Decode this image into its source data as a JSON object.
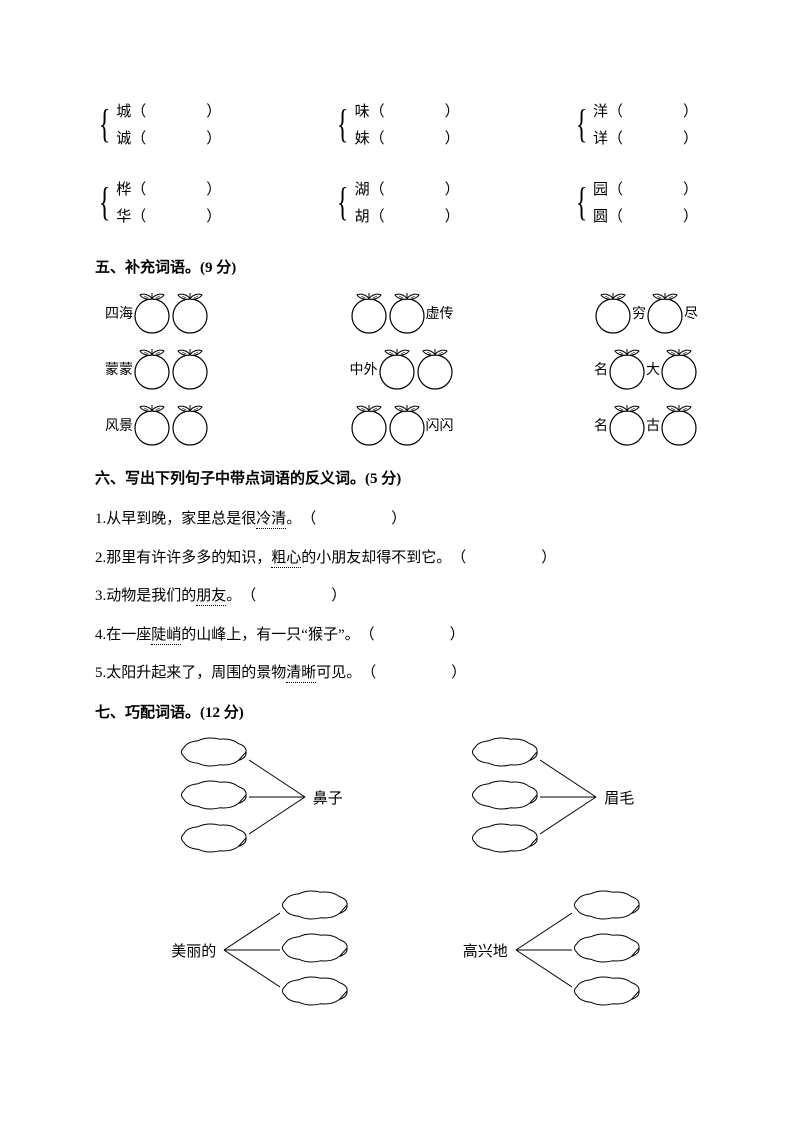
{
  "brackets": {
    "row1": {
      "g1": {
        "c1": "城",
        "c2": "诚"
      },
      "g2": {
        "c1": "味",
        "c2": "妹"
      },
      "g3": {
        "c1": "洋",
        "c2": "详"
      }
    },
    "row2": {
      "g1": {
        "c1": "桦",
        "c2": "华"
      },
      "g2": {
        "c1": "湖",
        "c2": "胡"
      },
      "g3": {
        "c1": "园",
        "c2": "圆"
      }
    }
  },
  "section5": {
    "heading": "五、补充词语。(9 分)",
    "rows": [
      {
        "a_pre": "四海",
        "a_post": "",
        "b_pre": "",
        "b_post": "虚传",
        "c_pre": "",
        "c_mid": "穷",
        "c_post": "尽"
      },
      {
        "a_pre": "蒙蒙",
        "a_post": "",
        "b_pre": "中外",
        "b_post": "",
        "c_pre": "名",
        "c_mid": "大",
        "c_post": ""
      },
      {
        "a_pre": "风景",
        "a_post": "",
        "b_pre": "",
        "b_post": "闪闪",
        "c_pre": "名",
        "c_mid": "古",
        "c_post": ""
      }
    ]
  },
  "section6": {
    "heading": "六、写出下列句子中带点词语的反义词。(5 分)",
    "s1_a": "1.从早到晚，家里总是很",
    "s1_d": "冷清",
    "s1_b": "。　（　　　　　）",
    "s2_a": "2.那里有许许多多的知识，",
    "s2_d": "粗心",
    "s2_b": "的小朋友却得不到它。　（　　　　　）",
    "s3_a": "3.动物是我们的",
    "s3_d": "朋友",
    "s3_b": "。　（　　　　　）",
    "s4_a": "4.在一座陡峭的山峰上，有一只\"猴子\"。　（　　　　　）",
    "s4_d": "陡峭",
    "s5_a": "5.太阳升起来了，周围的景物",
    "s5_d": "清晰",
    "s5_b": "可见。　（　　　　　）"
  },
  "section7": {
    "heading": "七、巧配词语。(12 分)",
    "g1": "鼻子",
    "g2": "眉毛",
    "g3": "美丽的",
    "g4": "高兴地"
  },
  "style": {
    "stroke": "#000000",
    "fill": "#ffffff",
    "tangerine_size": 38,
    "cloud_w": 70,
    "cloud_h": 32
  }
}
